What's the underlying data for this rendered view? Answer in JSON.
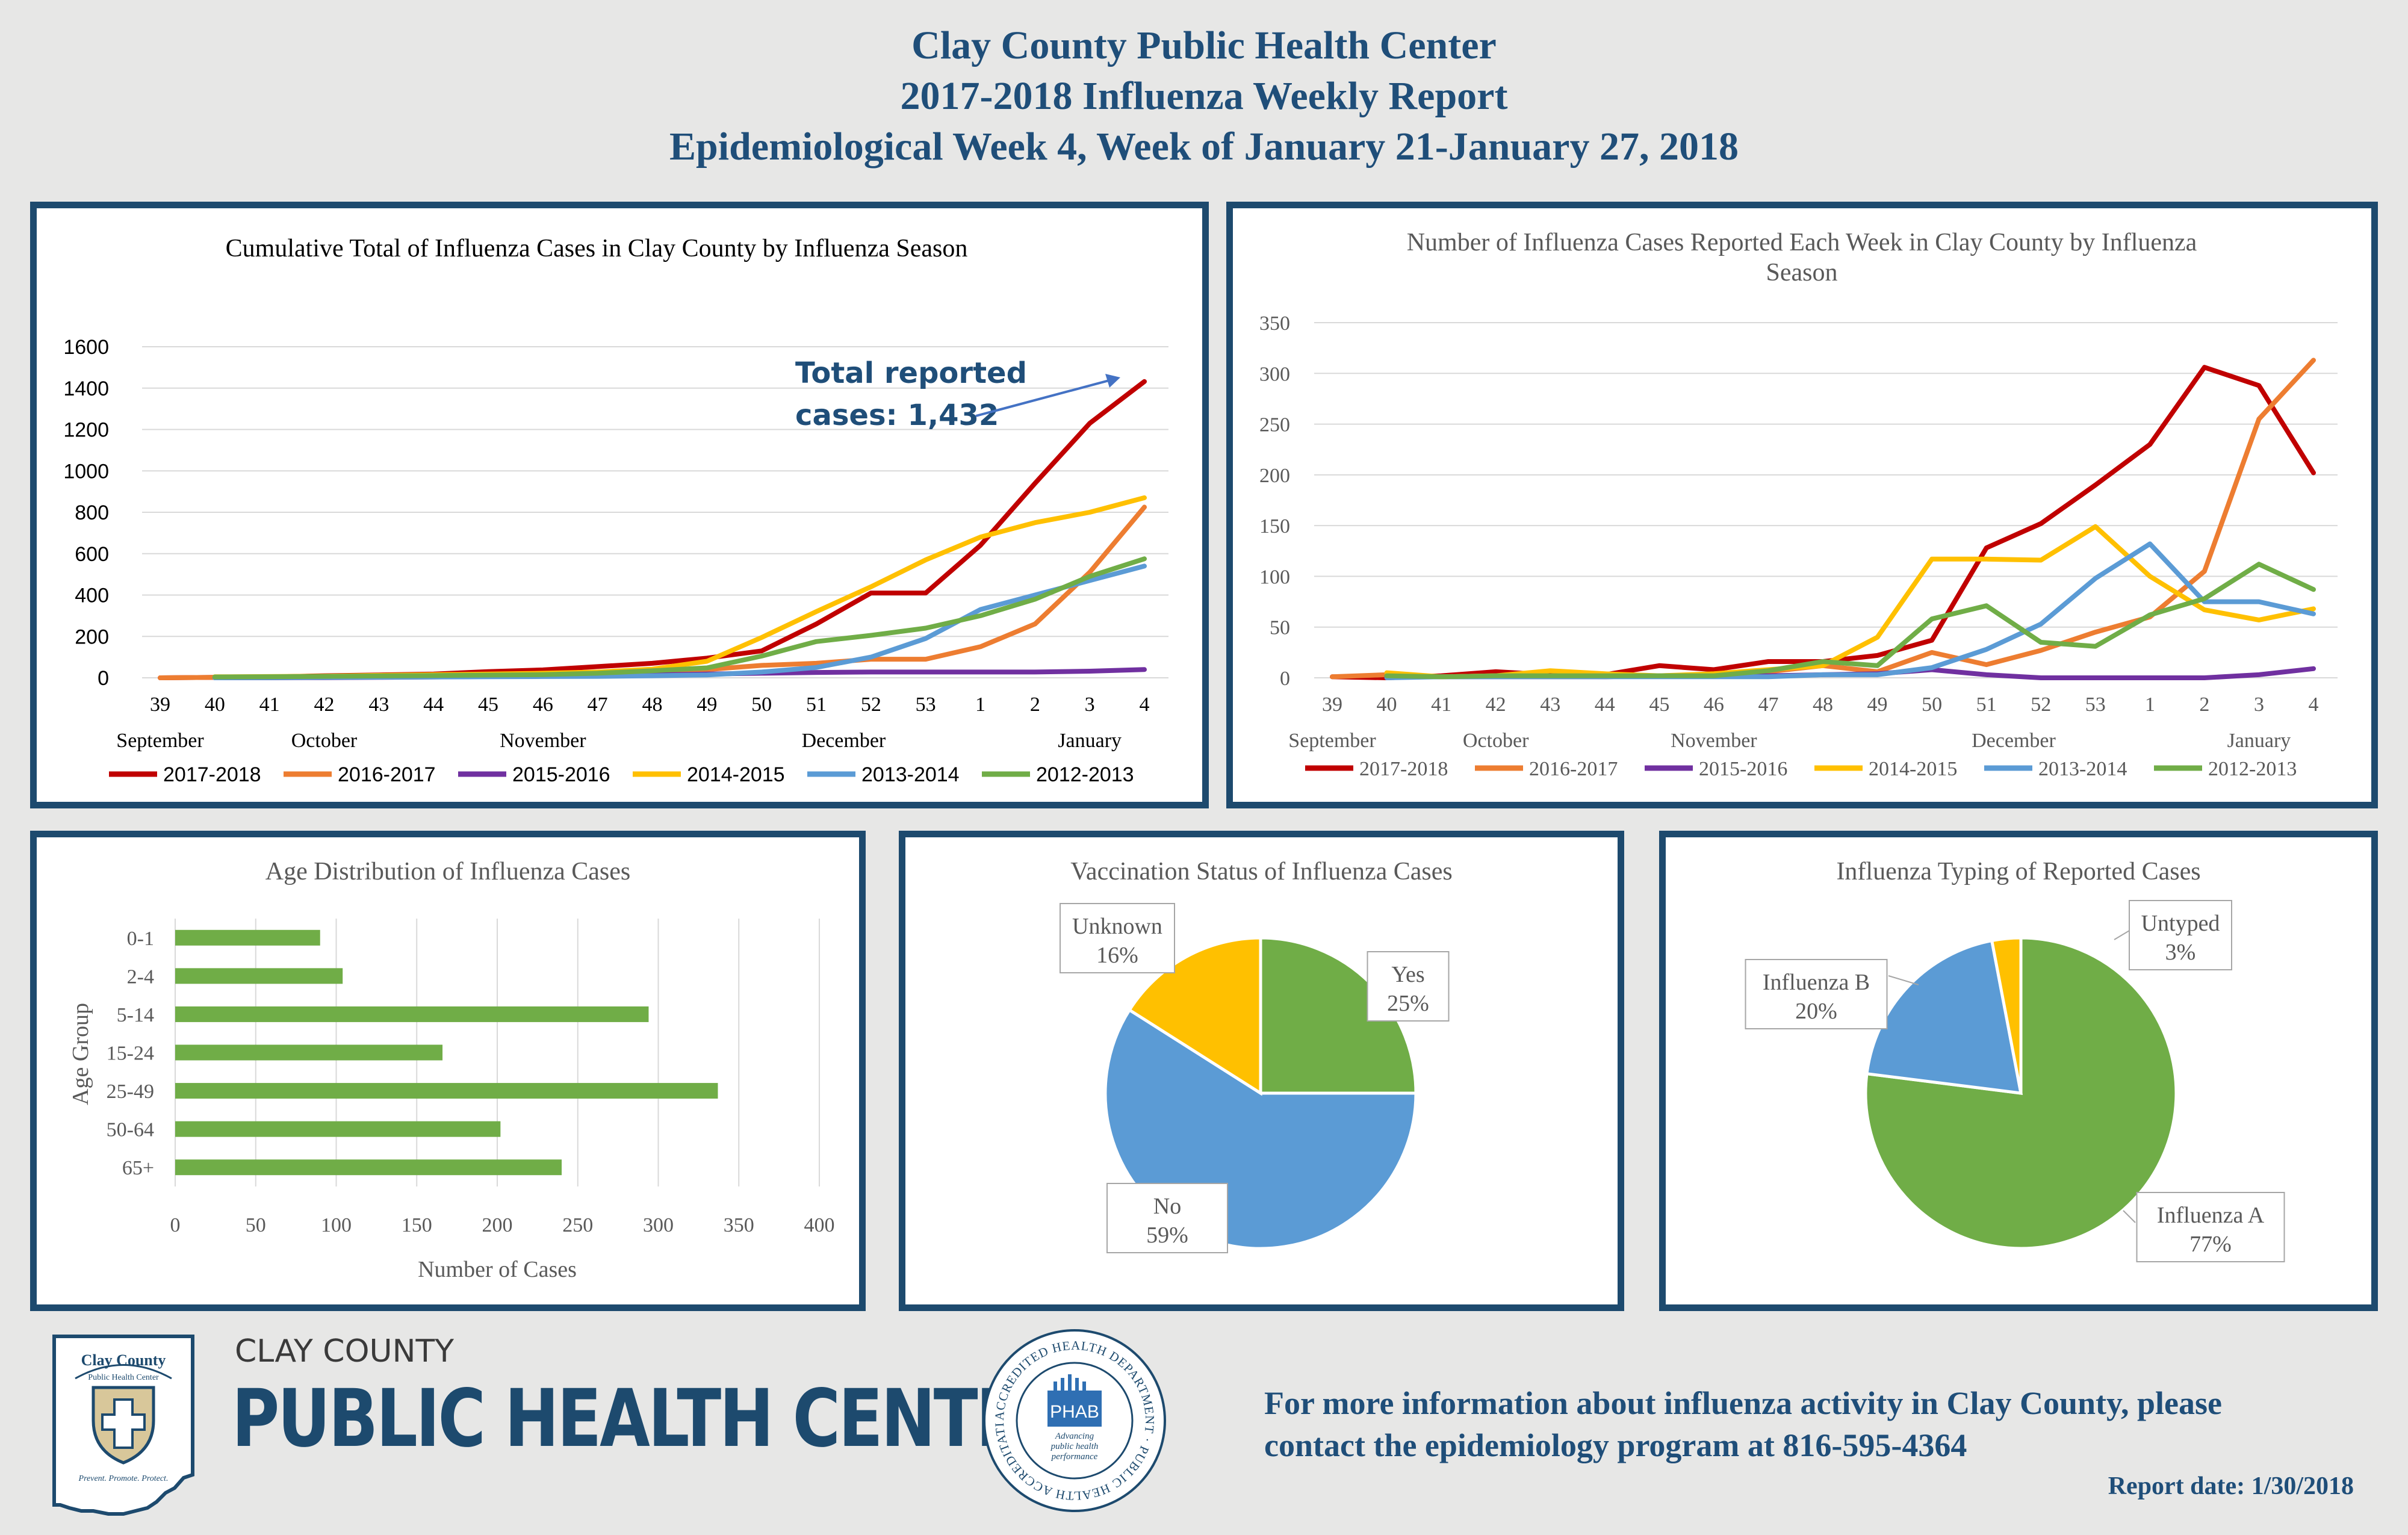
{
  "header": {
    "line1": "Clay County Public Health Center",
    "line2": "2017-2018 Influenza Weekly Report",
    "line3": "Epidemiological Week 4, Week of January 21-January 27, 2018"
  },
  "colors": {
    "s2017": "#c00000",
    "s2016": "#ed7d31",
    "s2015": "#7030a0",
    "s2014": "#ffc000",
    "s2013": "#5b9bd5",
    "s2012": "#70ad47",
    "panel_border": "#1d4a6e",
    "title_blue": "#1f4e79"
  },
  "weeks": [
    "39",
    "40",
    "41",
    "42",
    "43",
    "44",
    "45",
    "46",
    "47",
    "48",
    "49",
    "50",
    "51",
    "52",
    "53",
    "1",
    "2",
    "3",
    "4"
  ],
  "months": [
    {
      "label": "September",
      "at": 0
    },
    {
      "label": "October",
      "at": 3
    },
    {
      "label": "November",
      "at": 7
    },
    {
      "label": "December",
      "at": 12.5
    },
    {
      "label": "January",
      "at": 17
    }
  ],
  "chart_data": [
    {
      "id": "cumulative",
      "type": "line",
      "title": "Cumulative Total of Influenza Cases in Clay County by Influenza Season",
      "categories": [
        "39",
        "40",
        "41",
        "42",
        "43",
        "44",
        "45",
        "46",
        "47",
        "48",
        "49",
        "50",
        "51",
        "52",
        "53",
        "1",
        "2",
        "3",
        "4"
      ],
      "yticks": [
        "0",
        "200",
        "400",
        "600",
        "800",
        "1000",
        "1200",
        "1400",
        "1600"
      ],
      "ylim": [
        0,
        1600
      ],
      "annotation": {
        "line1": "Total reported",
        "line2": "cases: 1,432"
      },
      "series": [
        {
          "name": "2017-2018",
          "color": "#c00000",
          "values": [
            0,
            2,
            4,
            10,
            14,
            18,
            30,
            38,
            54,
            70,
            95,
            130,
            260,
            410,
            410,
            640,
            940,
            1230,
            1432
          ]
        },
        {
          "name": "2016-2017",
          "color": "#ed7d31",
          "values": [
            0,
            2,
            4,
            6,
            8,
            10,
            12,
            15,
            20,
            30,
            40,
            60,
            70,
            90,
            90,
            150,
            260,
            510,
            825
          ]
        },
        {
          "name": "2015-2016",
          "color": "#7030a0",
          "values": [
            null,
            0,
            0,
            1,
            2,
            4,
            6,
            8,
            10,
            14,
            18,
            22,
            26,
            28,
            28,
            28,
            28,
            32,
            40
          ]
        },
        {
          "name": "2014-2015",
          "color": "#ffc000",
          "values": [
            null,
            5,
            6,
            8,
            12,
            15,
            18,
            22,
            28,
            42,
            80,
            195,
            320,
            440,
            570,
            680,
            750,
            800,
            870
          ]
        },
        {
          "name": "2013-2014",
          "color": "#5b9bd5",
          "values": [
            null,
            0,
            1,
            2,
            3,
            4,
            5,
            6,
            7,
            10,
            14,
            28,
            50,
            100,
            190,
            330,
            400,
            470,
            540
          ]
        },
        {
          "name": "2012-2013",
          "color": "#70ad47",
          "values": [
            null,
            4,
            5,
            7,
            9,
            11,
            13,
            15,
            22,
            34,
            48,
            105,
            175,
            205,
            240,
            300,
            380,
            490,
            575
          ]
        }
      ]
    },
    {
      "id": "weekly",
      "type": "line",
      "title": "Number of Influenza Cases Reported Each Week in Clay County by Influenza Season",
      "categories": [
        "39",
        "40",
        "41",
        "42",
        "43",
        "44",
        "45",
        "46",
        "47",
        "48",
        "49",
        "50",
        "51",
        "52",
        "53",
        "1",
        "2",
        "3",
        "4"
      ],
      "yticks": [
        "0",
        "50",
        "100",
        "150",
        "200",
        "250",
        "300",
        "350"
      ],
      "ylim": [
        0,
        350
      ],
      "series": [
        {
          "name": "2017-2018",
          "color": "#c00000",
          "values": [
            1,
            0,
            2,
            6,
            3,
            3,
            12,
            8,
            16,
            16,
            22,
            37,
            128,
            152,
            190,
            230,
            306,
            288,
            202
          ]
        },
        {
          "name": "2016-2017",
          "color": "#ed7d31",
          "values": [
            1,
            3,
            1,
            2,
            2,
            1,
            2,
            3,
            6,
            12,
            6,
            25,
            13,
            27,
            45,
            60,
            105,
            255,
            313
          ]
        },
        {
          "name": "2015-2016",
          "color": "#7030a0",
          "values": [
            null,
            1,
            1,
            1,
            1,
            1,
            2,
            2,
            2,
            3,
            4,
            8,
            3,
            0,
            0,
            0,
            0,
            3,
            9
          ]
        },
        {
          "name": "2014-2015",
          "color": "#ffc000",
          "values": [
            null,
            5,
            1,
            2,
            7,
            4,
            2,
            4,
            8,
            12,
            40,
            117,
            117,
            116,
            149,
            100,
            67,
            57,
            68
          ]
        },
        {
          "name": "2013-2014",
          "color": "#5b9bd5",
          "values": [
            null,
            0,
            1,
            1,
            1,
            1,
            1,
            1,
            1,
            3,
            3,
            10,
            28,
            53,
            98,
            132,
            75,
            75,
            63
          ]
        },
        {
          "name": "2012-2013",
          "color": "#70ad47",
          "values": [
            null,
            2,
            1,
            2,
            2,
            2,
            2,
            2,
            7,
            16,
            12,
            58,
            71,
            35,
            31,
            62,
            78,
            112,
            87
          ]
        }
      ]
    },
    {
      "id": "age",
      "type": "bar",
      "title": "Age Distribution of Influenza Cases",
      "xlabel": "Number of Cases",
      "ylabel": "Age Group",
      "categories": [
        "0-1",
        "2-4",
        "5-14",
        "15-24",
        "25-49",
        "50-64",
        "65+"
      ],
      "values": [
        90,
        104,
        294,
        166,
        337,
        202,
        240
      ],
      "xticks": [
        "0",
        "50",
        "100",
        "150",
        "200",
        "250",
        "300",
        "350",
        "400"
      ],
      "xlim": [
        0,
        400
      ],
      "color": "#70ad47"
    },
    {
      "id": "vaccination",
      "type": "pie",
      "title": "Vaccination Status of Influenza Cases",
      "slices": [
        {
          "label": "Yes",
          "pct": "25%",
          "value": 25,
          "color": "#70ad47"
        },
        {
          "label": "No",
          "pct": "59%",
          "value": 59,
          "color": "#5b9bd5"
        },
        {
          "label": "Unknown",
          "pct": "16%",
          "value": 16,
          "color": "#ffc000"
        }
      ]
    },
    {
      "id": "typing",
      "type": "pie",
      "title": "Influenza Typing of Reported Cases",
      "slices": [
        {
          "label": "Influenza A",
          "pct": "77%",
          "value": 77,
          "color": "#70ad47"
        },
        {
          "label": "Influenza B",
          "pct": "20%",
          "value": 20,
          "color": "#5b9bd5"
        },
        {
          "label": "Untyped",
          "pct": "3%",
          "value": 3,
          "color": "#ffc000"
        }
      ]
    }
  ],
  "footer": {
    "logo_top": "Clay County",
    "logo_sub": "Public Health Center",
    "logo_motto": "Prevent. Promote. Protect.",
    "org_line1": "CLAY COUNTY",
    "org_line2": "PUBLIC HEALTH CENTER",
    "seal_ring": "ACCREDITED HEALTH DEPARTMENT · PUBLIC HEALTH ACCREDITATION BOARD ·",
    "seal_center": "PHAB",
    "seal_tag1": "Advancing",
    "seal_tag2": "public health",
    "seal_tag3": "performance",
    "contact_line1": "For more information about influenza activity in Clay County, please",
    "contact_line2": "contact the epidemiology program at 816-595-4364",
    "report_date": "Report date: 1/30/2018"
  }
}
